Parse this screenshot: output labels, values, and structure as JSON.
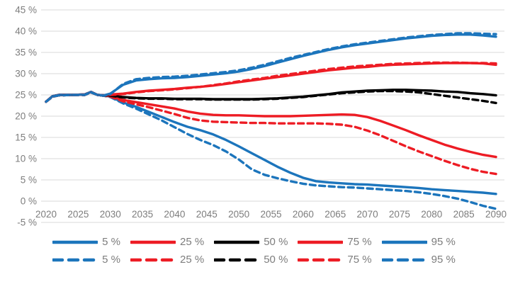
{
  "chart_data": {
    "type": "line",
    "title": "",
    "xlabel": "",
    "ylabel": "",
    "xlim": [
      2020,
      2090
    ],
    "ylim": [
      -5,
      45
    ],
    "grid": "horizontal-only",
    "legend_position": "bottom",
    "y_ticks": [
      {
        "value": 45,
        "label": "45 %"
      },
      {
        "value": 40,
        "label": "40 %"
      },
      {
        "value": 35,
        "label": "35 %"
      },
      {
        "value": 30,
        "label": "30 %"
      },
      {
        "value": 25,
        "label": "25 %"
      },
      {
        "value": 20,
        "label": "20 %"
      },
      {
        "value": 15,
        "label": "15 %"
      },
      {
        "value": 10,
        "label": "10 %"
      },
      {
        "value": 5,
        "label": "5 %"
      },
      {
        "value": 0,
        "label": "0 %"
      },
      {
        "value": -5,
        "label": "-5 %"
      }
    ],
    "x_ticks": [
      2020,
      2025,
      2030,
      2035,
      2040,
      2045,
      2050,
      2055,
      2060,
      2065,
      2070,
      2075,
      2080,
      2085,
      2090
    ],
    "x": [
      2020,
      2021,
      2022,
      2024,
      2026,
      2027,
      2028,
      2029,
      2030,
      2032,
      2034,
      2036,
      2038,
      2040,
      2042,
      2044,
      2046,
      2048,
      2050,
      2052,
      2054,
      2056,
      2058,
      2060,
      2062,
      2064,
      2066,
      2068,
      2070,
      2072,
      2074,
      2076,
      2078,
      2080,
      2082,
      2084,
      2086,
      2088,
      2090
    ],
    "series": [
      {
        "key": "5-solid",
        "name": "5 %",
        "percentile": 5,
        "style": "solid",
        "color": "#1C75BC",
        "values": [
          23.4,
          24.7,
          25.0,
          25.0,
          25.1,
          25.7,
          25.0,
          24.9,
          24.6,
          23.2,
          22.2,
          21.0,
          19.8,
          18.6,
          17.5,
          16.7,
          15.7,
          14.4,
          12.9,
          11.3,
          9.7,
          8.1,
          6.7,
          5.5,
          4.7,
          4.4,
          4.2,
          4.0,
          3.9,
          3.7,
          3.5,
          3.3,
          3.1,
          2.8,
          2.6,
          2.4,
          2.2,
          2.0,
          1.7
        ]
      },
      {
        "key": "25-solid",
        "name": "25 %",
        "percentile": 25,
        "style": "solid",
        "color": "#ED1C24",
        "values": [
          23.4,
          24.7,
          25.0,
          25.0,
          25.1,
          25.7,
          25.0,
          24.9,
          24.7,
          23.8,
          23.3,
          22.8,
          22.3,
          21.8,
          21.1,
          20.6,
          20.3,
          20.2,
          20.2,
          20.1,
          20.0,
          20.0,
          20.0,
          20.1,
          20.2,
          20.3,
          20.4,
          20.3,
          19.8,
          18.9,
          17.8,
          16.7,
          15.5,
          14.4,
          13.3,
          12.4,
          11.6,
          10.9,
          10.4
        ]
      },
      {
        "key": "50-solid",
        "name": "50 %",
        "percentile": 50,
        "style": "solid",
        "color": "#000000",
        "values": [
          23.4,
          24.7,
          25.0,
          25.0,
          25.1,
          25.7,
          25.0,
          24.9,
          24.9,
          24.5,
          24.3,
          24.2,
          24.2,
          24.1,
          24.1,
          24.1,
          24.0,
          24.0,
          24.0,
          24.0,
          24.1,
          24.2,
          24.4,
          24.6,
          24.9,
          25.2,
          25.6,
          25.8,
          26.0,
          26.1,
          26.2,
          26.2,
          26.1,
          26.0,
          25.8,
          25.7,
          25.4,
          25.2,
          24.9
        ]
      },
      {
        "key": "75-solid",
        "name": "75 %",
        "percentile": 75,
        "style": "solid",
        "color": "#ED1C24",
        "values": [
          23.4,
          24.7,
          25.0,
          25.0,
          25.1,
          25.7,
          25.0,
          24.9,
          25.1,
          25.3,
          25.7,
          26.0,
          26.2,
          26.4,
          26.7,
          26.9,
          27.2,
          27.6,
          28.0,
          28.4,
          28.8,
          29.2,
          29.6,
          30.0,
          30.4,
          30.8,
          31.1,
          31.4,
          31.6,
          31.9,
          32.1,
          32.2,
          32.3,
          32.4,
          32.5,
          32.5,
          32.5,
          32.4,
          32.1
        ]
      },
      {
        "key": "95-solid",
        "name": "95 %",
        "percentile": 95,
        "style": "solid",
        "color": "#1C75BC",
        "values": [
          23.4,
          24.7,
          25.0,
          25.0,
          25.1,
          25.7,
          25.0,
          24.9,
          25.3,
          27.4,
          28.4,
          28.7,
          28.9,
          29.0,
          29.2,
          29.5,
          29.8,
          30.1,
          30.5,
          31.1,
          31.8,
          32.6,
          33.4,
          34.2,
          34.9,
          35.6,
          36.2,
          36.7,
          37.1,
          37.5,
          37.9,
          38.3,
          38.6,
          38.9,
          39.1,
          39.2,
          39.2,
          39.0,
          38.7
        ]
      },
      {
        "key": "5-dashed",
        "name": "5 %",
        "percentile": 5,
        "style": "dashed",
        "color": "#1C75BC",
        "values": [
          23.4,
          24.6,
          24.9,
          25.0,
          25.0,
          25.6,
          25.0,
          24.8,
          24.5,
          23.0,
          21.8,
          20.4,
          19.0,
          17.4,
          15.8,
          14.4,
          13.2,
          11.7,
          9.8,
          7.5,
          6.2,
          5.4,
          4.7,
          4.1,
          3.7,
          3.5,
          3.3,
          3.2,
          3.0,
          2.8,
          2.6,
          2.4,
          2.1,
          1.7,
          1.2,
          0.6,
          -0.2,
          -1.1,
          -1.8
        ]
      },
      {
        "key": "25-dashed",
        "name": "25 %",
        "percentile": 25,
        "style": "dashed",
        "color": "#ED1C24",
        "values": [
          23.4,
          24.6,
          24.9,
          25.0,
          25.0,
          25.6,
          25.0,
          24.8,
          24.6,
          23.5,
          22.8,
          22.1,
          21.3,
          20.5,
          19.6,
          19.0,
          18.7,
          18.6,
          18.5,
          18.4,
          18.4,
          18.3,
          18.3,
          18.3,
          18.3,
          18.2,
          18.0,
          17.5,
          16.6,
          15.5,
          14.2,
          12.9,
          11.7,
          10.6,
          9.5,
          8.5,
          7.6,
          6.9,
          6.4
        ]
      },
      {
        "key": "50-dashed",
        "name": "50 %",
        "percentile": 50,
        "style": "dashed",
        "color": "#000000",
        "values": [
          23.4,
          24.6,
          24.9,
          25.0,
          25.0,
          25.6,
          25.0,
          24.8,
          24.8,
          24.4,
          24.2,
          24.1,
          24.1,
          24.0,
          24.0,
          24.0,
          23.9,
          23.9,
          23.9,
          23.9,
          24.0,
          24.1,
          24.3,
          24.5,
          24.8,
          25.1,
          25.4,
          25.6,
          25.8,
          25.9,
          25.9,
          25.8,
          25.6,
          25.2,
          24.8,
          24.4,
          24.0,
          23.6,
          23.1
        ]
      },
      {
        "key": "75-dashed",
        "name": "75 %",
        "percentile": 75,
        "style": "dashed",
        "color": "#ED1C24",
        "values": [
          23.4,
          24.6,
          24.9,
          25.0,
          25.0,
          25.6,
          25.0,
          24.8,
          25.0,
          25.2,
          25.6,
          25.9,
          26.1,
          26.3,
          26.6,
          26.9,
          27.3,
          27.7,
          28.2,
          28.6,
          29.0,
          29.5,
          29.9,
          30.3,
          30.7,
          31.1,
          31.4,
          31.7,
          31.9,
          32.1,
          32.3,
          32.4,
          32.5,
          32.6,
          32.6,
          32.6,
          32.5,
          32.5,
          32.4
        ]
      },
      {
        "key": "95-dashed",
        "name": "95 %",
        "percentile": 95,
        "style": "dashed",
        "color": "#1C75BC",
        "values": [
          23.4,
          24.6,
          24.9,
          25.0,
          25.0,
          25.6,
          25.0,
          24.8,
          25.2,
          27.6,
          28.7,
          29.0,
          29.2,
          29.3,
          29.5,
          29.8,
          30.1,
          30.4,
          30.8,
          31.4,
          32.1,
          32.9,
          33.7,
          34.4,
          35.1,
          35.8,
          36.4,
          36.9,
          37.3,
          37.7,
          38.1,
          38.5,
          38.8,
          39.1,
          39.3,
          39.5,
          39.5,
          39.4,
          39.3
        ]
      }
    ]
  },
  "legend": {
    "rows": [
      [
        {
          "label": "5 %",
          "color": "#1C75BC",
          "style": "solid"
        },
        {
          "label": "25 %",
          "color": "#ED1C24",
          "style": "solid"
        },
        {
          "label": "50 %",
          "color": "#000000",
          "style": "solid"
        },
        {
          "label": "75 %",
          "color": "#ED1C24",
          "style": "solid"
        },
        {
          "label": "95 %",
          "color": "#1C75BC",
          "style": "solid"
        }
      ],
      [
        {
          "label": "5 %",
          "color": "#1C75BC",
          "style": "dashed"
        },
        {
          "label": "25 %",
          "color": "#ED1C24",
          "style": "dashed"
        },
        {
          "label": "50 %",
          "color": "#000000",
          "style": "dashed"
        },
        {
          "label": "75 %",
          "color": "#ED1C24",
          "style": "dashed"
        },
        {
          "label": "95 %",
          "color": "#1C75BC",
          "style": "dashed"
        }
      ]
    ]
  },
  "colors": {
    "background": "#ffffff",
    "gridline": "#D9D9D9",
    "axis_text": "#7d7d7d",
    "blue": "#1C75BC",
    "red": "#ED1C24",
    "black": "#000000"
  }
}
